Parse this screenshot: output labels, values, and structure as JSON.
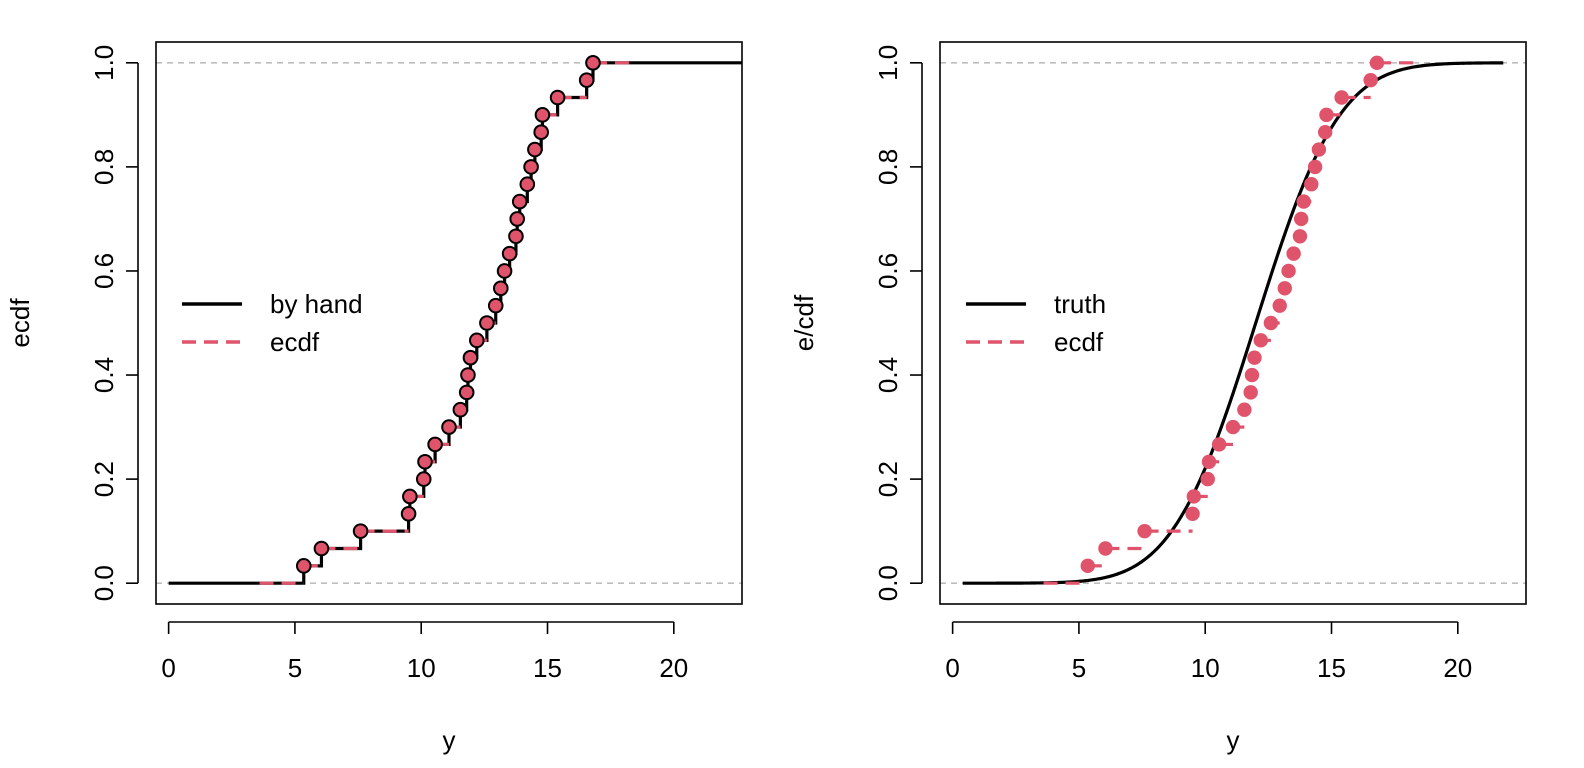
{
  "colors": {
    "black": "#000000",
    "ecdf": "#DF536B",
    "refline": "#BEBEBE",
    "frame": "#000000"
  },
  "chart_data": [
    {
      "type": "line",
      "panel": "left",
      "title": "",
      "xlabel": "y",
      "ylabel": "ecdf",
      "xlim": [
        -0.5,
        22.7
      ],
      "ylim": [
        -0.04,
        1.04
      ],
      "xticks": [
        0,
        5,
        10,
        15,
        20
      ],
      "yticks": [
        0.0,
        0.2,
        0.4,
        0.6,
        0.8,
        1.0
      ],
      "xtick_labels": [
        "0",
        "5",
        "10",
        "15",
        "20"
      ],
      "ytick_labels": [
        "0.0",
        "0.2",
        "0.4",
        "0.6",
        "0.8",
        "1.0"
      ],
      "grid": false,
      "reference_lines_y": [
        0,
        1
      ],
      "legend": {
        "position": "left-middle",
        "entries": [
          {
            "label": "by hand",
            "style": "solid",
            "color": "black"
          },
          {
            "label": "ecdf",
            "style": "dashed",
            "color": "ecdf"
          }
        ]
      },
      "series": [
        {
          "name": "by hand",
          "kind": "step",
          "style": "solid",
          "from_x": 0,
          "to_x": 22.7
        },
        {
          "name": "ecdf",
          "kind": "step-points",
          "style": "dashed",
          "from_x": 3.6,
          "to_x": 18.5,
          "points_outlined": true
        }
      ]
    },
    {
      "type": "line",
      "panel": "right",
      "title": "",
      "xlabel": "y",
      "ylabel": "e/cdf",
      "xlim": [
        -0.5,
        22.7
      ],
      "ylim": [
        -0.04,
        1.04
      ],
      "xticks": [
        0,
        5,
        10,
        15,
        20
      ],
      "yticks": [
        0.0,
        0.2,
        0.4,
        0.6,
        0.8,
        1.0
      ],
      "xtick_labels": [
        "0",
        "5",
        "10",
        "15",
        "20"
      ],
      "ytick_labels": [
        "0.0",
        "0.2",
        "0.4",
        "0.6",
        "0.8",
        "1.0"
      ],
      "grid": false,
      "reference_lines_y": [
        0,
        1
      ],
      "legend": {
        "position": "left-middle",
        "entries": [
          {
            "label": "truth",
            "style": "solid",
            "color": "black"
          },
          {
            "label": "ecdf",
            "style": "dashed",
            "color": "ecdf"
          }
        ]
      },
      "truth_curve": {
        "name": "truth",
        "distribution": "normal",
        "mean": 12,
        "sd": 2.6,
        "x_range": [
          0.4,
          21.8
        ]
      },
      "series": [
        {
          "name": "ecdf",
          "kind": "step-points",
          "style": "dashed",
          "from_x": 3.6,
          "to_x": 18.5,
          "points_outlined": false
        }
      ]
    }
  ],
  "ecdf_x": [
    5.35,
    6.05,
    7.6,
    9.5,
    9.55,
    10.1,
    10.15,
    10.55,
    11.1,
    11.55,
    11.8,
    11.85,
    11.95,
    12.2,
    12.6,
    12.95,
    13.15,
    13.3,
    13.5,
    13.75,
    13.8,
    13.9,
    14.2,
    14.35,
    14.5,
    14.75,
    14.8,
    15.4,
    16.55,
    16.8
  ]
}
